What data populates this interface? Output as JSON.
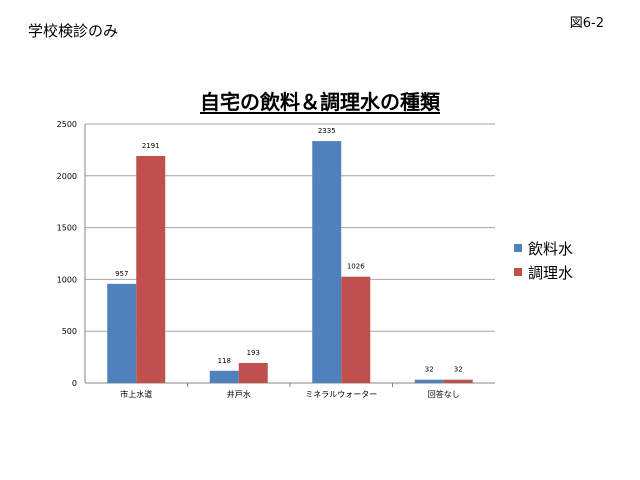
{
  "header": {
    "subtitle": "学校検診のみ",
    "figure_number": "図6-2"
  },
  "colors": {
    "series1": "#4f81bd",
    "series2": "#c0504d",
    "grid": "#a6a6a6",
    "axis": "#868686"
  },
  "chart_data": {
    "type": "bar",
    "title": "自宅の飲料＆調理水の種類",
    "categories": [
      "市上水道",
      "井戸水",
      "ミネラルウォーター",
      "回答なし"
    ],
    "series": [
      {
        "name": "飲料水",
        "values": [
          957,
          118,
          2335,
          32
        ]
      },
      {
        "name": "調理水",
        "values": [
          2191,
          193,
          1026,
          32
        ]
      }
    ],
    "data_labels": [
      [
        "957",
        "118",
        "2335",
        "32"
      ],
      [
        "2191",
        "193",
        "1026",
        "32"
      ]
    ],
    "ylim": [
      0,
      2500
    ],
    "yticks": [
      "0",
      "500",
      "1000",
      "1500",
      "2000",
      "2500"
    ],
    "grid": true,
    "legend_position": "right"
  }
}
